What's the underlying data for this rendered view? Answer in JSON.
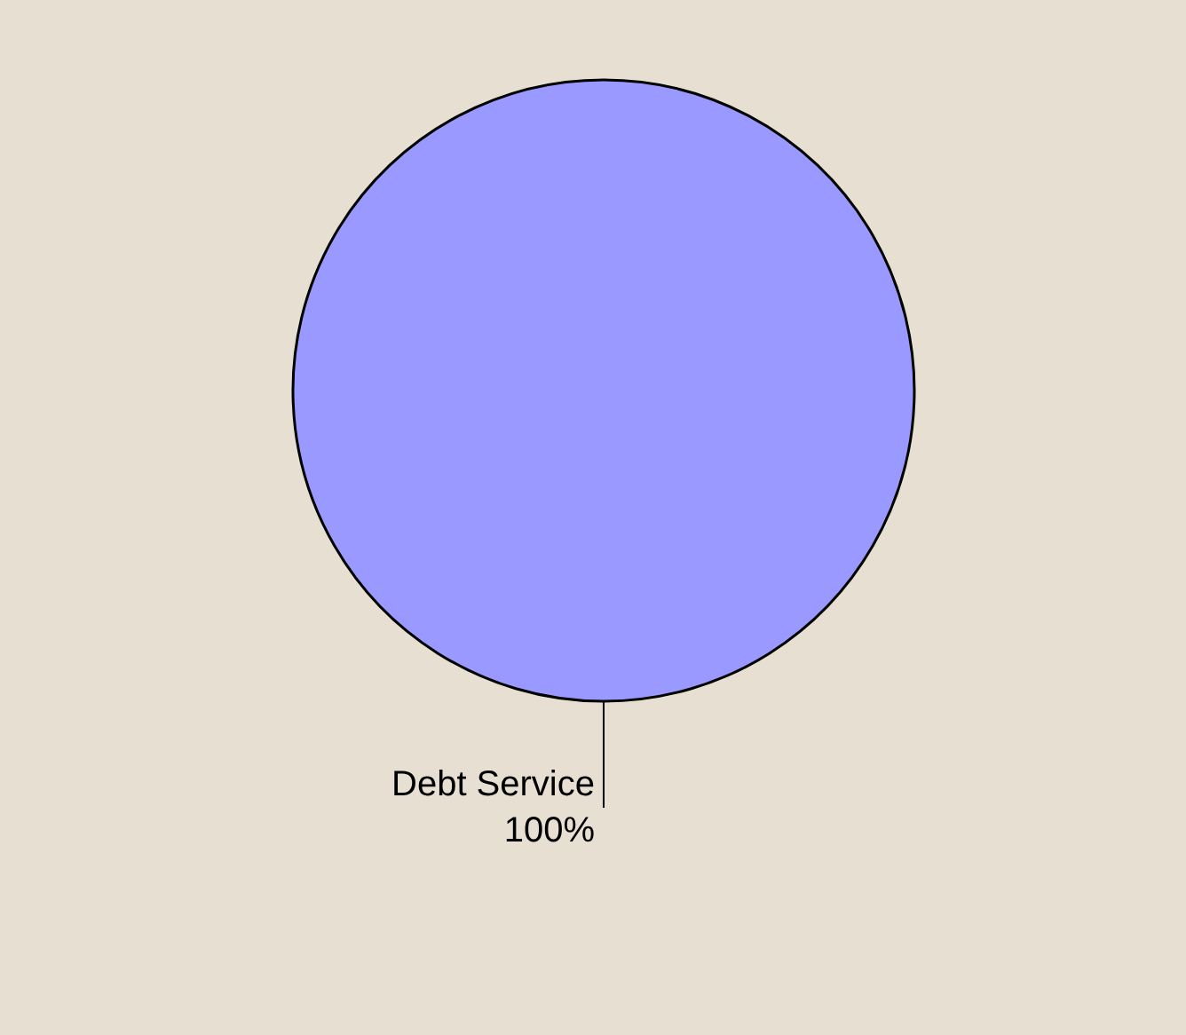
{
  "chart_data": {
    "type": "pie",
    "categories": [
      "Debt Service"
    ],
    "values": [
      100
    ],
    "colors": [
      "#9999ff"
    ],
    "value_labels": [
      "100%"
    ]
  }
}
